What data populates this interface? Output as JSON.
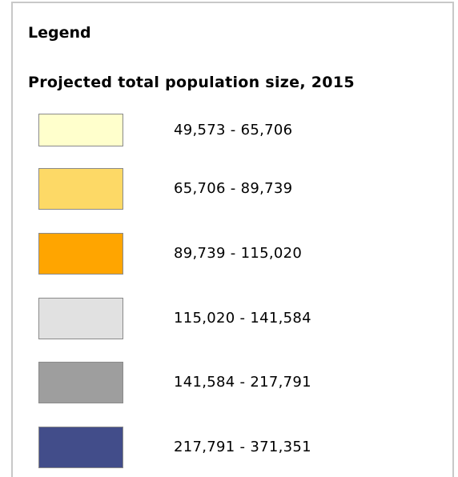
{
  "legend": {
    "title": "Legend",
    "subtitle": "Projected total population size, 2015",
    "items": [
      {
        "label": "49,573 - 65,706",
        "color": "#ffffcc"
      },
      {
        "label": "65,706 - 89,739",
        "color": "#fdd966"
      },
      {
        "label": "89,739 - 115,020",
        "color": "#ffa500"
      },
      {
        "label": "115,020 - 141,584",
        "color": "#e1e1e1"
      },
      {
        "label": "141,584 - 217,791",
        "color": "#9e9e9e"
      },
      {
        "label": "217,791 - 371,351",
        "color": "#424d8a"
      }
    ]
  }
}
